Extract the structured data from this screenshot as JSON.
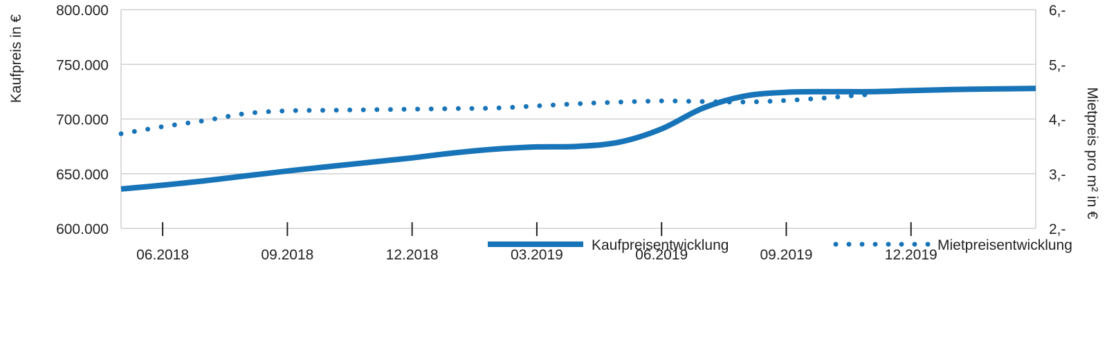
{
  "chart_data": {
    "type": "line",
    "y_left": {
      "label": "Kaufpreis in €",
      "min": 600000,
      "max": 800000,
      "ticks": [
        600000,
        650000,
        700000,
        750000,
        800000
      ],
      "tick_labels": [
        "600.000",
        "650.000",
        "700.000",
        "750.000",
        "800.000"
      ]
    },
    "y_right": {
      "label": "Mietpreis pro m² in €",
      "min": 2,
      "max": 6,
      "ticks": [
        2,
        3,
        4,
        5,
        6
      ],
      "tick_labels": [
        "2,-",
        "3,-",
        "4,-",
        "5,-",
        "6,-"
      ]
    },
    "x": {
      "min": "2018-05",
      "max": "2020-03",
      "ticks": [
        "2018-06",
        "2018-09",
        "2018-12",
        "2019-03",
        "2019-06",
        "2019-09",
        "2019-12"
      ],
      "tick_labels": [
        "06.2018",
        "09.2018",
        "12.2018",
        "03.2019",
        "06.2019",
        "09.2019",
        "12.2019"
      ]
    },
    "grid": true,
    "legend_position": "bottom-right",
    "colors": {
      "line": "#1874b8",
      "grid": "#cfcfcf",
      "axis": "#cfcfcf",
      "text": "#222222"
    },
    "series": [
      {
        "name": "Kaufpreisentwicklung",
        "axis": "left",
        "style": "solid",
        "points": [
          {
            "x": "2018-05",
            "y": 636000
          },
          {
            "x": "2018-06",
            "y": 639500
          },
          {
            "x": "2018-07",
            "y": 643500
          },
          {
            "x": "2018-08",
            "y": 648000
          },
          {
            "x": "2018-09",
            "y": 652500
          },
          {
            "x": "2018-10",
            "y": 656500
          },
          {
            "x": "2018-11",
            "y": 660500
          },
          {
            "x": "2018-12",
            "y": 664500
          },
          {
            "x": "2019-01",
            "y": 669000
          },
          {
            "x": "2019-02",
            "y": 672500
          },
          {
            "x": "2019-03",
            "y": 674500
          },
          {
            "x": "2019-04",
            "y": 675000
          },
          {
            "x": "2019-05",
            "y": 679000
          },
          {
            "x": "2019-06",
            "y": 691000
          },
          {
            "x": "2019-07",
            "y": 710000
          },
          {
            "x": "2019-08",
            "y": 721000
          },
          {
            "x": "2019-09",
            "y": 724500
          },
          {
            "x": "2019-10",
            "y": 725000
          },
          {
            "x": "2019-11",
            "y": 725000
          },
          {
            "x": "2019-12",
            "y": 726000
          },
          {
            "x": "2020-01",
            "y": 727000
          },
          {
            "x": "2020-02",
            "y": 727500
          },
          {
            "x": "2020-03",
            "y": 728000
          }
        ]
      },
      {
        "name": "Mietpreisentwicklung",
        "axis": "right",
        "style": "dotted",
        "points": [
          {
            "x": "2018-05",
            "y": 3.73
          },
          {
            "x": "2018-06",
            "y": 3.86
          },
          {
            "x": "2018-07",
            "y": 3.97
          },
          {
            "x": "2018-08",
            "y": 4.1
          },
          {
            "x": "2018-09",
            "y": 4.15
          },
          {
            "x": "2018-10",
            "y": 4.16
          },
          {
            "x": "2018-11",
            "y": 4.17
          },
          {
            "x": "2018-12",
            "y": 4.18
          },
          {
            "x": "2019-01",
            "y": 4.19
          },
          {
            "x": "2019-02",
            "y": 4.2
          },
          {
            "x": "2019-03",
            "y": 4.24
          },
          {
            "x": "2019-04",
            "y": 4.28
          },
          {
            "x": "2019-05",
            "y": 4.31
          },
          {
            "x": "2019-06",
            "y": 4.33
          },
          {
            "x": "2019-07",
            "y": 4.32
          },
          {
            "x": "2019-08",
            "y": 4.31
          },
          {
            "x": "2019-09",
            "y": 4.34
          },
          {
            "x": "2019-10",
            "y": 4.39
          },
          {
            "x": "2019-11",
            "y": 4.45
          }
        ]
      }
    ]
  }
}
